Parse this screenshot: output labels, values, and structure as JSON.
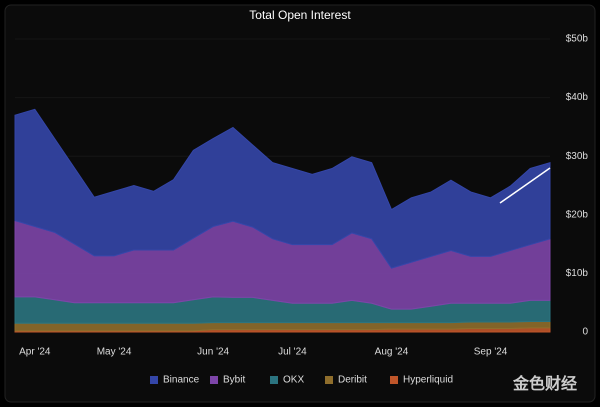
{
  "chart_data": {
    "type": "stacked_area",
    "title": "Total Open Interest",
    "categories": [
      null,
      "Apr '24",
      null,
      null,
      null,
      "May '24",
      null,
      null,
      null,
      null,
      "Jun '24",
      null,
      null,
      null,
      "Jul '24",
      null,
      null,
      null,
      null,
      "Aug '24",
      null,
      null,
      null,
      null,
      "Sep '24",
      null,
      null,
      null
    ],
    "series": [
      {
        "name": "Binance",
        "color": "#3446a8",
        "values": [
          18,
          20,
          16,
          13,
          10,
          11,
          11,
          10,
          12,
          15,
          15,
          16,
          14,
          13,
          13,
          12,
          13,
          13,
          13,
          10,
          11,
          11,
          12,
          11,
          10,
          11,
          13,
          13
        ]
      },
      {
        "name": "Bybit",
        "color": "#7d45a8",
        "values": [
          13,
          12,
          11.5,
          10,
          8,
          8,
          9,
          9,
          9,
          10.5,
          12,
          13,
          12,
          10.5,
          10,
          10,
          10,
          11.5,
          11,
          7,
          8,
          8.5,
          9,
          8,
          8,
          9,
          9.5,
          10.5
        ]
      },
      {
        "name": "OKX",
        "color": "#2b7480",
        "values": [
          4.5,
          4.5,
          4,
          3.5,
          3.5,
          3.5,
          3.5,
          3.5,
          3.5,
          4,
          4.4,
          4.3,
          4.3,
          3.8,
          3.3,
          3.3,
          3.3,
          3.8,
          3.3,
          2.3,
          2.3,
          2.8,
          3.3,
          3.2,
          3.2,
          3.2,
          3.6,
          3.6
        ]
      },
      {
        "name": "Deribit",
        "color": "#8f6e2c",
        "values": [
          1.3,
          1.3,
          1.3,
          1.3,
          1.3,
          1.3,
          1.3,
          1.3,
          1.3,
          1.3,
          1.2,
          1.2,
          1.2,
          1.2,
          1.2,
          1.2,
          1.2,
          1.2,
          1.2,
          1.1,
          1.1,
          1.1,
          1.1,
          1.1,
          1.1,
          1.1,
          1.1,
          1.1
        ]
      },
      {
        "name": "Hyperliquid",
        "color": "#c0562a",
        "values": [
          0.2,
          0.2,
          0.2,
          0.2,
          0.2,
          0.2,
          0.2,
          0.2,
          0.2,
          0.2,
          0.4,
          0.4,
          0.4,
          0.4,
          0.4,
          0.4,
          0.4,
          0.4,
          0.4,
          0.5,
          0.5,
          0.5,
          0.5,
          0.6,
          0.6,
          0.6,
          0.7,
          0.7
        ]
      }
    ],
    "ylim": [
      0,
      50
    ],
    "yticks": [
      0,
      {
        "value": 10,
        "label": "$10b"
      },
      {
        "value": 20,
        "label": "$20b"
      },
      {
        "value": 30,
        "label": "$30b"
      },
      {
        "value": 40,
        "label": "$40b"
      },
      {
        "value": 50,
        "label": "$50b"
      }
    ],
    "legend": "bottom",
    "watermark": "金色财经"
  }
}
